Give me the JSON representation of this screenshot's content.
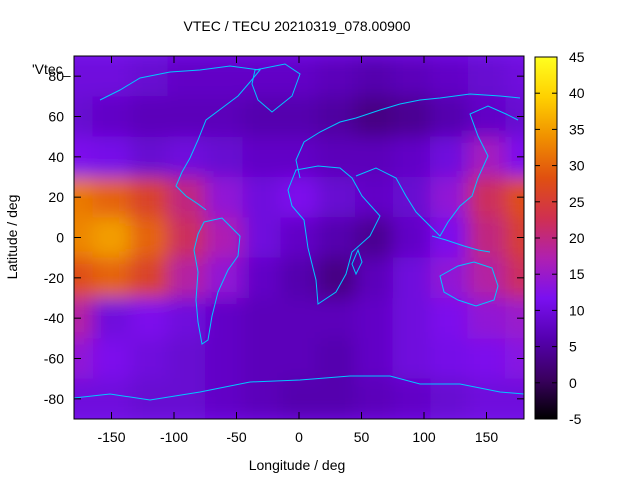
{
  "chart_data": {
    "type": "heatmap",
    "title": "VTEC / TECU 20210319_078.00900",
    "xlabel": "Longitude / deg",
    "ylabel": "Latitude / deg",
    "series_label": "'Vtec_",
    "xlim": [
      -180,
      180
    ],
    "ylim": [
      -90,
      90
    ],
    "xticks": [
      -150,
      -100,
      -50,
      0,
      50,
      100,
      150
    ],
    "yticks": [
      -80,
      -60,
      -40,
      -20,
      0,
      20,
      40,
      60,
      80
    ],
    "colorbar": {
      "min": -5,
      "max": 45,
      "ticks": [
        -5,
        0,
        5,
        10,
        15,
        20,
        25,
        30,
        35,
        40,
        45
      ],
      "palette": [
        "#000000",
        "#3a0060",
        "#5500b0",
        "#7a10f0",
        "#b020b0",
        "#d03050",
        "#e05010",
        "#f09000",
        "#ffd000",
        "#ffff20"
      ]
    },
    "grid": false,
    "legend": "top-left",
    "coastline_color": "#00c8ff",
    "lat": [
      80,
      60,
      40,
      20,
      0,
      -20,
      -40,
      -60,
      -80
    ],
    "lon": [
      -180,
      -150,
      -120,
      -90,
      -60,
      -30,
      0,
      30,
      60,
      90,
      120,
      150,
      180
    ],
    "values": [
      [
        10,
        10,
        9,
        8,
        8,
        8,
        8,
        7,
        6,
        7,
        8,
        9,
        10
      ],
      [
        9,
        8,
        7,
        7,
        7,
        6,
        6,
        5,
        3,
        4,
        6,
        8,
        9
      ],
      [
        12,
        11,
        9,
        10,
        9,
        8,
        8,
        7,
        7,
        8,
        10,
        16,
        12
      ],
      [
        32,
        30,
        26,
        20,
        14,
        10,
        12,
        9,
        8,
        9,
        14,
        22,
        28
      ],
      [
        33,
        35,
        30,
        22,
        17,
        10,
        8,
        6,
        4,
        8,
        12,
        20,
        25
      ],
      [
        28,
        30,
        26,
        18,
        14,
        8,
        6,
        3,
        7,
        10,
        14,
        18,
        22
      ],
      [
        18,
        10,
        12,
        10,
        8,
        7,
        7,
        7,
        8,
        10,
        12,
        14,
        15
      ],
      [
        14,
        12,
        10,
        9,
        8,
        7,
        7,
        6,
        8,
        10,
        11,
        12,
        13
      ],
      [
        10,
        10,
        9,
        9,
        8,
        7,
        6,
        6,
        7,
        8,
        9,
        10,
        10
      ]
    ]
  }
}
